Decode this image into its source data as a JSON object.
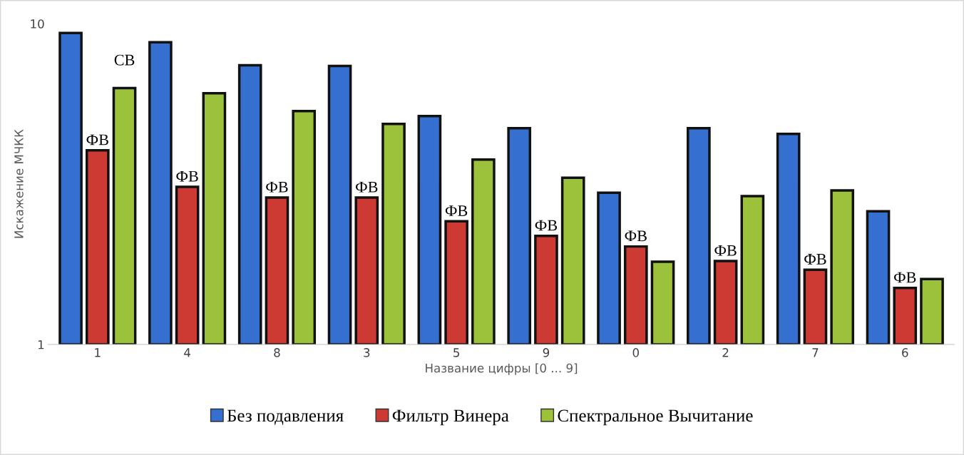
{
  "chart_data": {
    "type": "bar",
    "categories": [
      "1",
      "4",
      "8",
      "3",
      "5",
      "9",
      "0",
      "2",
      "7",
      "6"
    ],
    "series": [
      {
        "name": "Без подавления",
        "color": "#3570d0",
        "values": [
          9.35,
          8.75,
          7.42,
          7.38,
          5.15,
          4.72,
          2.97,
          4.72,
          4.53,
          2.6
        ]
      },
      {
        "name": "Фильтр Винера",
        "color": "#cc3a33",
        "values": [
          4.03,
          3.1,
          2.87,
          2.87,
          2.42,
          2.18,
          2.02,
          1.82,
          1.71,
          1.5
        ]
      },
      {
        "name": "Спектральное Вычитание",
        "color": "#9cc23c",
        "values": [
          6.3,
          6.07,
          5.34,
          4.87,
          3.77,
          3.31,
          1.81,
          2.9,
          3.02,
          1.6
        ]
      }
    ],
    "log": true,
    "ylim": [
      1,
      10
    ],
    "yticks": [
      1,
      10
    ],
    "xlabel": "Название цифры [0 ... 9]",
    "ylabel": "Искажение МЧКК",
    "legend": "bottom",
    "grid": false,
    "annotations": [
      "СВ",
      {
        "text": "ФВ",
        "x": "1",
        "y": 4.03
      },
      {
        "text": "ФВ",
        "x": "4",
        "y": 3.1
      },
      {
        "text": "ФВ",
        "x": "8",
        "y": 2.87
      },
      {
        "text": "ФВ",
        "x": "3",
        "y": 2.87
      },
      {
        "text": "ФВ",
        "x": "5",
        "y": 2.42
      },
      {
        "text": "ФВ",
        "x": "9",
        "y": 2.18
      },
      {
        "text": "ФВ",
        "x": "0",
        "y": 2.02
      },
      {
        "text": "ФВ",
        "x": "2",
        "y": 1.82
      },
      {
        "text": "ФВ",
        "x": "7",
        "y": 1.71
      },
      {
        "text": "ФВ",
        "x": "6",
        "y": 1.5
      }
    ]
  }
}
